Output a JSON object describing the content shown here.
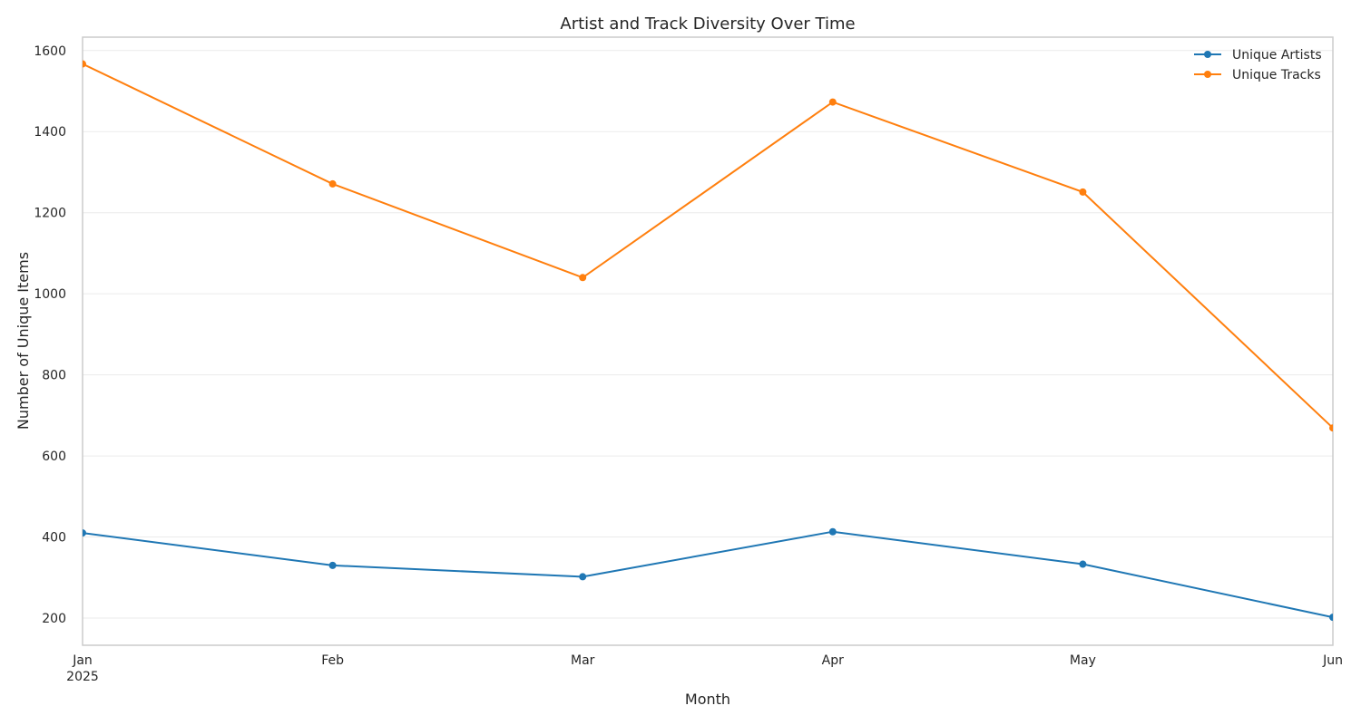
{
  "chart_data": {
    "type": "line",
    "title": "Artist and Track Diversity Over Time",
    "xlabel": "Month",
    "ylabel": "Number of Unique Items",
    "x": [
      "2025-01",
      "2025-02",
      "2025-03",
      "2025-04",
      "2025-05",
      "2025-06"
    ],
    "x_tick_labels": [
      {
        "label": "Jan",
        "sublabel": "2025"
      },
      {
        "label": "Feb",
        "sublabel": ""
      },
      {
        "label": "Mar",
        "sublabel": ""
      },
      {
        "label": "Apr",
        "sublabel": ""
      },
      {
        "label": "May",
        "sublabel": ""
      },
      {
        "label": "Jun",
        "sublabel": ""
      }
    ],
    "y_ticks": [
      200,
      400,
      600,
      800,
      1000,
      1200,
      1400,
      1600
    ],
    "ylim": [
      133,
      1633
    ],
    "grid": true,
    "legend_position": "top-right",
    "series": [
      {
        "name": "Unique Artists",
        "color": "#1f77b4",
        "marker": "circle",
        "values": [
          410,
          330,
          302,
          413,
          333,
          202
        ]
      },
      {
        "name": "Unique Tracks",
        "color": "#ff7f0e",
        "marker": "circle",
        "values": [
          1567,
          1271,
          1040,
          1473,
          1251,
          669
        ]
      }
    ]
  }
}
